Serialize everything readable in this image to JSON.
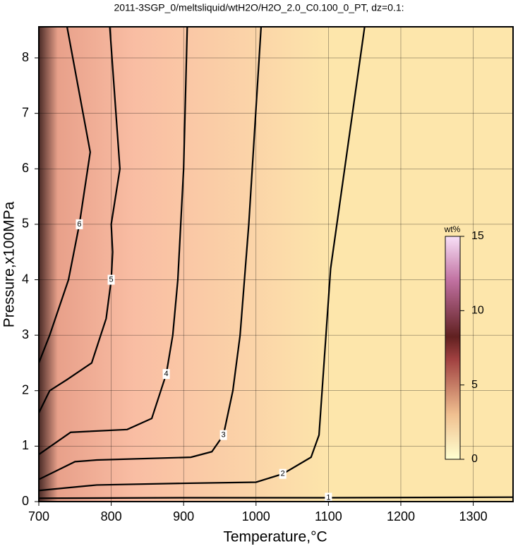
{
  "chart_data": {
    "type": "contour",
    "title": "2011-3SGP_0/meltsliquid/wtH2O/H2O_2.0_C0.100_0_PT, dz=0.1:",
    "x_label": "Temperature,°C",
    "y_label": "Pressure,x100MPa",
    "xlim": [
      700,
      1355
    ],
    "ylim": [
      0,
      8.56
    ],
    "xticks": [
      700,
      800,
      900,
      1000,
      1100,
      1200,
      1300
    ],
    "yticks": [
      0,
      1,
      2,
      3,
      4,
      5,
      6,
      7,
      8
    ],
    "grid": true,
    "line_color": "#000000",
    "contours": [
      {
        "level": 1,
        "x": [
          700,
          900,
          1100,
          1355
        ],
        "y": [
          0.06,
          0.07,
          0.07,
          0.08
        ]
      },
      {
        "level": 2,
        "x": [
          700,
          780,
          900,
          1000,
          1037,
          1076,
          1087,
          1103,
          1150
        ],
        "y": [
          0.2,
          0.3,
          0.33,
          0.35,
          0.5,
          0.8,
          1.2,
          4.2,
          8.56
        ]
      },
      {
        "level": 3,
        "x": [
          700,
          750,
          780,
          910,
          939,
          955,
          968,
          978,
          990,
          1007
        ],
        "y": [
          0.4,
          0.72,
          0.75,
          0.8,
          0.9,
          1.2,
          2,
          3,
          5,
          8.56
        ]
      },
      {
        "level": 4,
        "x": [
          700,
          744,
          822,
          856,
          876,
          885,
          892,
          900,
          905
        ],
        "y": [
          0.85,
          1.25,
          1.3,
          1.5,
          2.3,
          3,
          4,
          6,
          8.56
        ]
      },
      {
        "level": 5,
        "x": [
          700,
          715,
          739,
          773,
          793,
          800,
          802,
          800,
          812,
          798
        ],
        "y": [
          1.6,
          2,
          2.2,
          2.5,
          3.3,
          4,
          4.5,
          5,
          6,
          8.56
        ]
      },
      {
        "level": 6,
        "x": [
          700,
          715,
          741,
          756,
          771,
          739
        ],
        "y": [
          2.5,
          3,
          4,
          5,
          6.3,
          8.56
        ]
      }
    ],
    "colorbar": {
      "label": "wt%",
      "lim": [
        0,
        15
      ],
      "ticks": [
        0,
        5,
        10,
        15
      ]
    }
  }
}
